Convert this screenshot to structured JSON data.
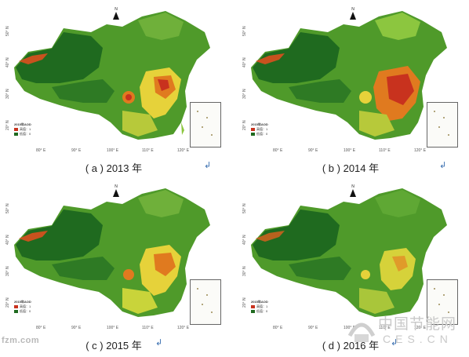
{
  "panels": [
    {
      "caption": "( a ) 2013 年",
      "variant": 0
    },
    {
      "caption": "( b ) 2014 年",
      "variant": 1
    },
    {
      "caption": "( c ) 2015 年",
      "variant": 2
    },
    {
      "caption": "( d ) 2016 年",
      "variant": 3
    }
  ],
  "map_labels": {
    "north": "N",
    "lat": [
      "50° N",
      "40° N",
      "30° N",
      "20° N"
    ],
    "lon": [
      "80° E",
      "90° E",
      "100° E",
      "110° E",
      "120° E"
    ],
    "legend_title": "2015年AOD",
    "legend_high": "高值：1",
    "legend_low": "低值：0"
  },
  "colors": {
    "dark_green": "#1f6a1f",
    "green": "#3f8f2a",
    "light_green": "#8cc63f",
    "yellow": "#e6d23a",
    "orange": "#e07a1f",
    "red": "#c8321e"
  },
  "watermarks": {
    "left": "fzm.com",
    "right_cn": "中国节能网",
    "right_domain": "CES.CN"
  },
  "edit_marks": [
    "↲",
    "↲",
    "↲",
    "↲"
  ]
}
